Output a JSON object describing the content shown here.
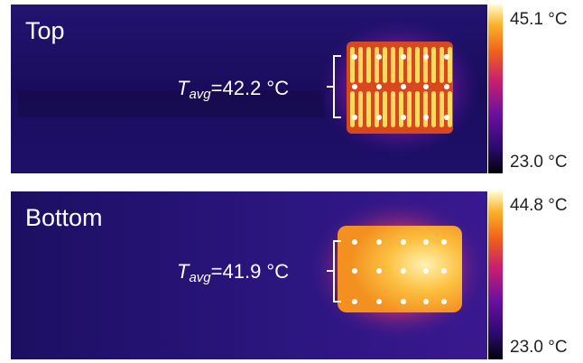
{
  "panels": [
    {
      "label": "Top",
      "tavg_symbol": "T",
      "tavg_subscript": "avg",
      "tavg_value": "=42.2 °C",
      "scale_max": "45.1 °C",
      "scale_min": "23.0 °C"
    },
    {
      "label": "Bottom",
      "tavg_symbol": "T",
      "tavg_subscript": "avg",
      "tavg_value": "=41.9 °C",
      "scale_max": "44.8 °C",
      "scale_min": "23.0 °C"
    }
  ]
}
